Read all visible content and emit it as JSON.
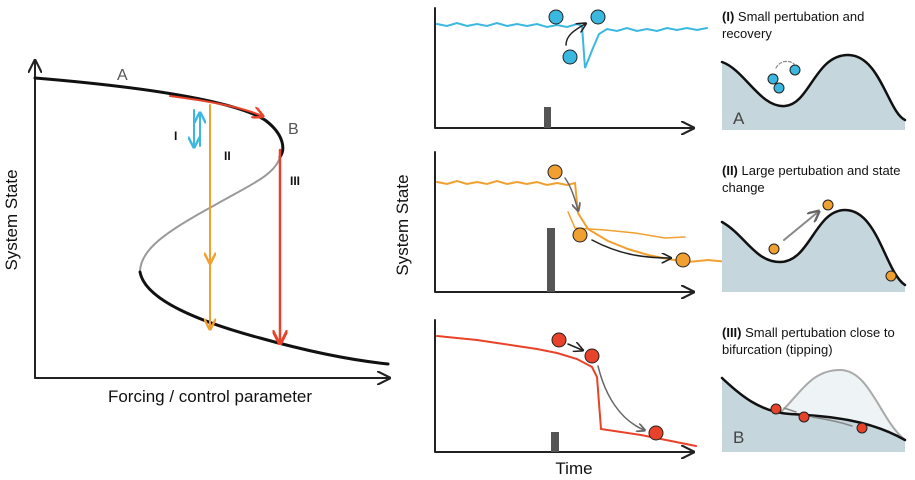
{
  "bifurcation": {
    "y_label": "System State",
    "x_label": "Forcing / control parameter",
    "branch_labels": [
      "A",
      "B"
    ],
    "perturbation_labels": [
      "I",
      "II",
      "III"
    ]
  },
  "time_series": {
    "y_label": "System State",
    "x_label": "Time"
  },
  "scenarios": [
    {
      "number": "(I)",
      "description": "Small pertubation and recovery",
      "landscape_label": "A"
    },
    {
      "number": "(II)",
      "description": "Large pertubation and state change"
    },
    {
      "number": "(III)",
      "description": "Small pertubation close to bifurcation (tipping)",
      "landscape_label": "B"
    }
  ]
}
